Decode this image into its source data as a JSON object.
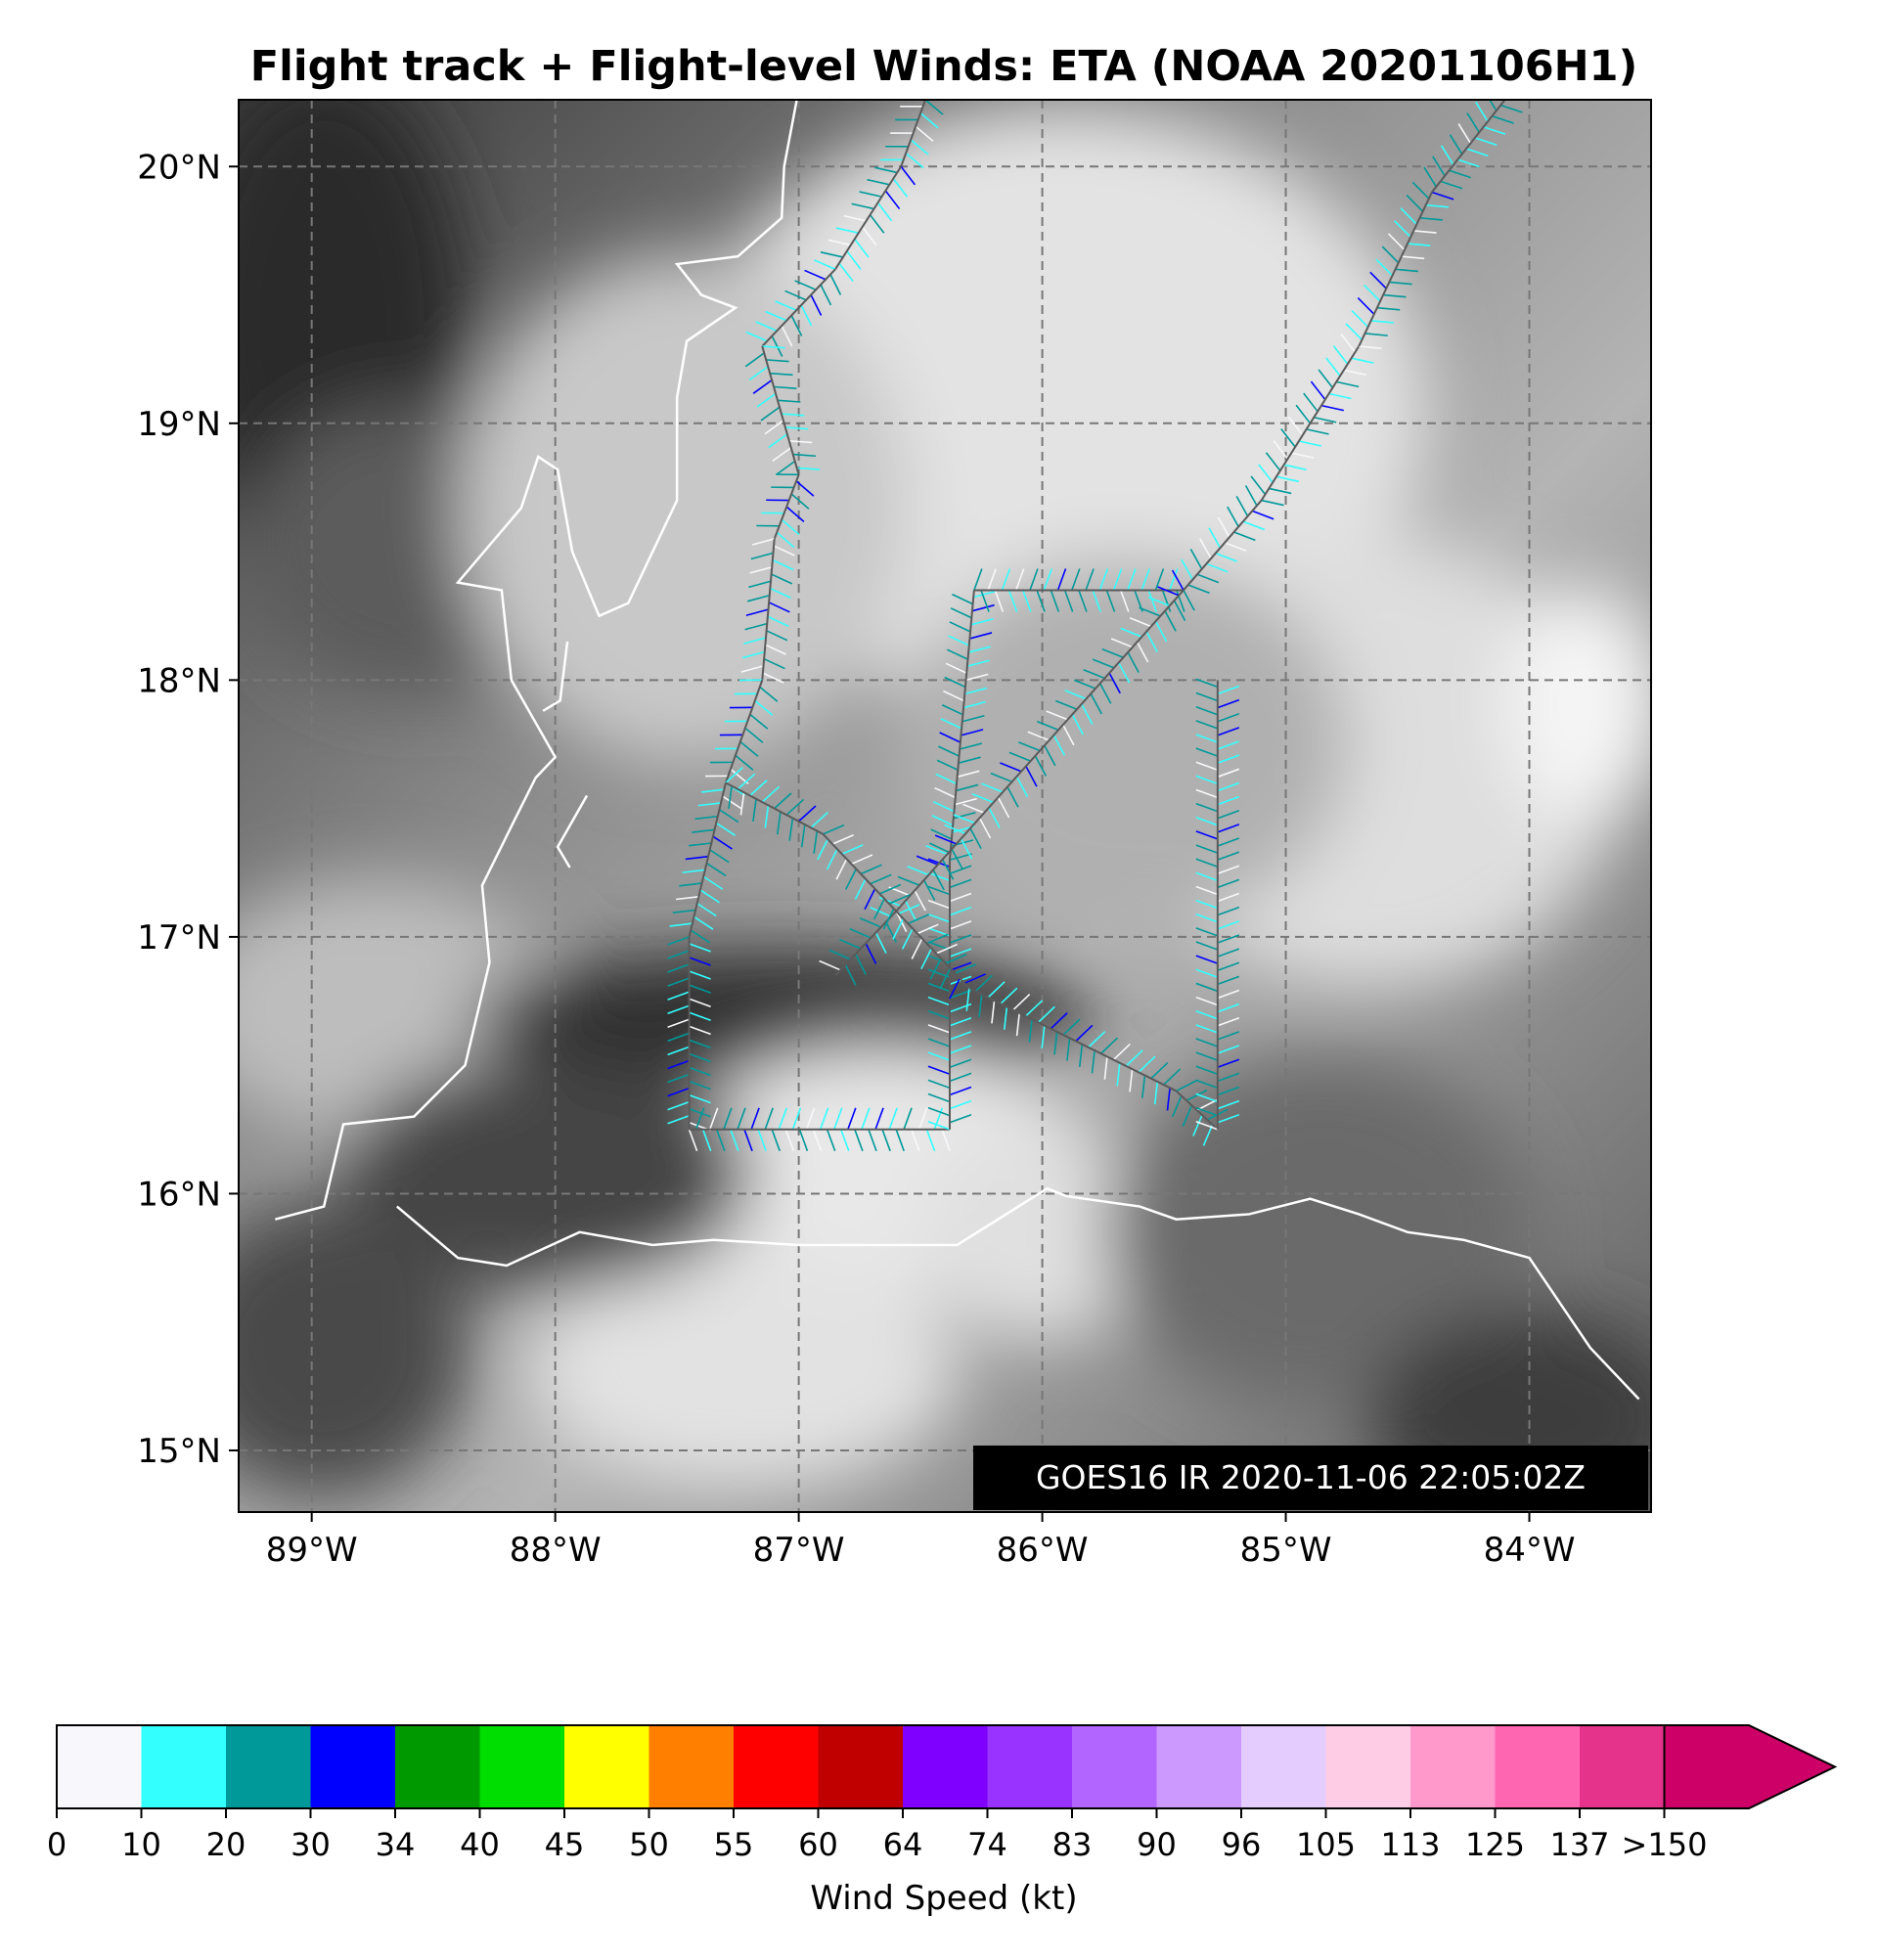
{
  "title": "Flight track + Flight-level Winds: ETA (NOAA 20201106H1)",
  "stamp": "GOES16 IR 2020-11-06 22:05:02Z",
  "map": {
    "lon_range": [
      -89.3,
      -83.5
    ],
    "lat_range": [
      14.76,
      20.26
    ],
    "lat_ticks": [
      {
        "value": 20,
        "label": "20°N"
      },
      {
        "value": 19,
        "label": "19°N"
      },
      {
        "value": 18,
        "label": "18°N"
      },
      {
        "value": 17,
        "label": "17°N"
      },
      {
        "value": 16,
        "label": "16°N"
      },
      {
        "value": 15,
        "label": "15°N"
      }
    ],
    "lon_ticks": [
      {
        "value": -89,
        "label": "89°W"
      },
      {
        "value": -88,
        "label": "88°W"
      },
      {
        "value": -87,
        "label": "87°W"
      },
      {
        "value": -86,
        "label": "86°W"
      },
      {
        "value": -85,
        "label": "85°W"
      },
      {
        "value": -84,
        "label": "84°W"
      }
    ],
    "grid": "dashed gray",
    "background": "grayscale infrared satellite imagery",
    "coastline_color": "#ffffff",
    "coast_yucatan": [
      [
        -87.0,
        20.3
      ],
      [
        -87.06,
        20.0
      ],
      [
        -87.07,
        19.8
      ],
      [
        -87.25,
        19.65
      ],
      [
        -87.5,
        19.62
      ],
      [
        -87.4,
        19.5
      ],
      [
        -87.26,
        19.45
      ],
      [
        -87.46,
        19.32
      ],
      [
        -87.5,
        19.1
      ],
      [
        -87.5,
        18.7
      ],
      [
        -87.7,
        18.3
      ],
      [
        -87.82,
        18.25
      ],
      [
        -87.93,
        18.5
      ],
      [
        -87.99,
        18.82
      ],
      [
        -88.07,
        18.87
      ],
      [
        -88.14,
        18.67
      ],
      [
        -88.4,
        18.38
      ],
      [
        -88.22,
        18.35
      ],
      [
        -88.18,
        18.0
      ],
      [
        -88.0,
        17.7
      ],
      [
        -88.08,
        17.62
      ],
      [
        -88.17,
        17.45
      ],
      [
        -88.3,
        17.2
      ],
      [
        -88.27,
        16.9
      ],
      [
        -88.37,
        16.5
      ],
      [
        -88.58,
        16.3
      ],
      [
        -88.87,
        16.27
      ],
      [
        -88.95,
        15.95
      ],
      [
        -89.15,
        15.9
      ]
    ],
    "coast_honduras": [
      [
        -88.65,
        15.95
      ],
      [
        -88.4,
        15.75
      ],
      [
        -88.2,
        15.72
      ],
      [
        -87.9,
        15.85
      ],
      [
        -87.6,
        15.8
      ],
      [
        -87.35,
        15.82
      ],
      [
        -87.0,
        15.8
      ],
      [
        -86.75,
        15.8
      ],
      [
        -86.35,
        15.8
      ],
      [
        -85.98,
        16.02
      ],
      [
        -85.9,
        15.99
      ],
      [
        -85.6,
        15.95
      ],
      [
        -85.45,
        15.9
      ],
      [
        -85.15,
        15.92
      ],
      [
        -84.9,
        15.98
      ],
      [
        -84.7,
        15.92
      ],
      [
        -84.5,
        15.85
      ],
      [
        -84.27,
        15.82
      ],
      [
        -84.0,
        15.75
      ],
      [
        -83.75,
        15.4
      ],
      [
        -83.55,
        15.2
      ]
    ],
    "coast_islands": [
      [
        [
          -87.95,
          18.15
        ],
        [
          -87.98,
          17.92
        ],
        [
          -88.05,
          17.88
        ]
      ],
      [
        [
          -87.87,
          17.55
        ],
        [
          -87.99,
          17.35
        ],
        [
          -87.94,
          17.27
        ]
      ]
    ],
    "flight_track": [
      [
        -86.48,
        20.26
      ],
      [
        -86.58,
        20.0
      ],
      [
        -86.85,
        19.6
      ],
      [
        -87.15,
        19.3
      ],
      [
        -87.0,
        18.8
      ],
      [
        -87.1,
        18.55
      ],
      [
        -87.15,
        18.0
      ],
      [
        -87.3,
        17.6
      ],
      [
        -87.45,
        17.0
      ],
      [
        -87.45,
        16.25
      ],
      [
        -86.6,
        16.25
      ],
      [
        -86.38,
        16.25
      ],
      [
        -86.38,
        17.3
      ],
      [
        -86.28,
        18.35
      ],
      [
        -85.42,
        18.35
      ],
      [
        -85.1,
        18.7
      ],
      [
        -84.7,
        19.3
      ],
      [
        -84.4,
        19.9
      ],
      [
        -84.1,
        20.26
      ]
    ],
    "flight_track_diagonals": [
      [
        [
          -85.42,
          18.35
        ],
        [
          -86.6,
          17.1
        ],
        [
          -86.85,
          16.85
        ]
      ],
      [
        [
          -87.3,
          17.6
        ],
        [
          -86.9,
          17.4
        ],
        [
          -86.3,
          16.8
        ],
        [
          -85.45,
          16.4
        ],
        [
          -85.28,
          16.25
        ],
        [
          -85.28,
          18.0
        ]
      ]
    ],
    "barb_legend_note": "barbs colored by wind speed"
  },
  "colorbar": {
    "title": "Wind Speed (kt)",
    "ticks": [
      "0",
      "10",
      "20",
      "30",
      "34",
      "40",
      "45",
      "50",
      "55",
      "60",
      "64",
      "74",
      "83",
      "90",
      "96",
      "105",
      "113",
      "125",
      "137",
      ">150"
    ],
    "colors": [
      "#f8f8fc",
      "#33ffff",
      "#009999",
      "#0000ff",
      "#009900",
      "#00dd00",
      "#ffff00",
      "#ff7f00",
      "#ff0000",
      "#c00000",
      "#7f00ff",
      "#9933ff",
      "#b266ff",
      "#cc99ff",
      "#e5ccff",
      "#ffcce5",
      "#ff99cc",
      "#ff66b2",
      "#e5338c",
      "#cc0066"
    ],
    "extend": "max"
  }
}
